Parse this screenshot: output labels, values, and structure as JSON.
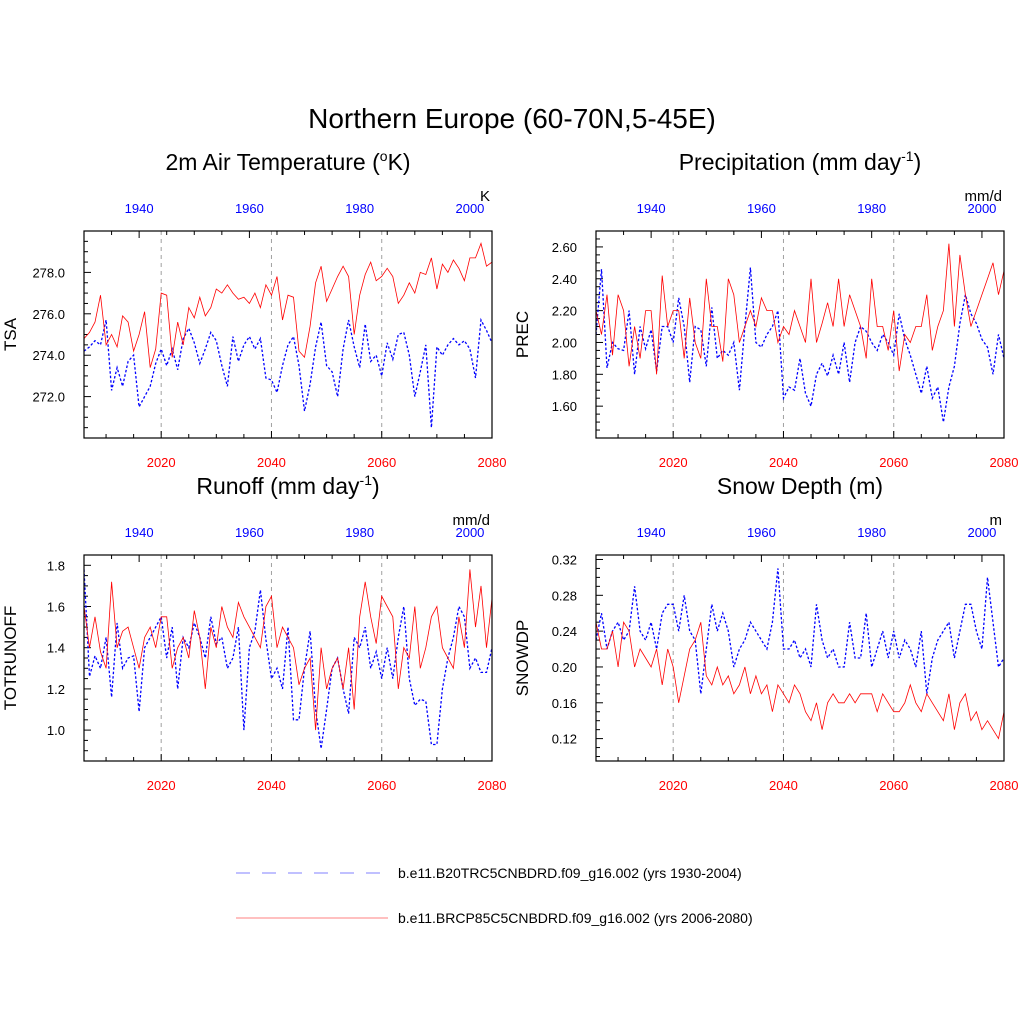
{
  "title": "Northern Europe (60-70N,5-45E)",
  "colors": {
    "historical": "#0000ff",
    "future": "#ff0000",
    "grid": "#a0a0a0",
    "axis": "#000000"
  },
  "legend": {
    "historical_label": "b.e11.B20TRC5CNBDRD.f09_g16.002 (yrs 1930-2004)",
    "future_label": "b.e11.BRCP85C5CNBDRD.f09_g16.002 (yrs 2006-2080)"
  },
  "chart_data": [
    {
      "type": "line",
      "title": "2m Air Temperature (°K)",
      "title_main": "2m Air Temperature (",
      "title_sup": "o",
      "title_end": "K)",
      "ylabel": "TSA",
      "units": "K",
      "ylim": [
        270.0,
        280.0
      ],
      "yticks": [
        272,
        274,
        276,
        278
      ],
      "ytick_labels": [
        "272.0",
        "274.0",
        "276.0",
        "278.0"
      ],
      "bottom_xlim": [
        2006,
        2080
      ],
      "bottom_xticks": [
        2020,
        2040,
        2060,
        2080
      ],
      "bottom_xtick_labels": [
        "2020",
        "2040",
        "2060",
        "2080"
      ],
      "top_xlim": [
        1930,
        2004
      ],
      "top_xticks": [
        1940,
        1960,
        1980,
        2000
      ],
      "top_xtick_labels": [
        "1940",
        "1960",
        "1980",
        "2000"
      ],
      "series": [
        {
          "name": "b.e11.B20TRC5CNBDRD.f09_g16.002 (yrs 1930-2004)",
          "style": "dashed",
          "axis": "top",
          "values": [
            274.2,
            274.4,
            274.7,
            274.5,
            275.7,
            272.3,
            273.4,
            272.5,
            273.7,
            274.0,
            271.5,
            272.0,
            272.5,
            273.6,
            274.3,
            273.5,
            274.3,
            273.3,
            274.8,
            275.3,
            274.6,
            273.6,
            274.3,
            275.1,
            274.7,
            273.5,
            272.5,
            274.9,
            273.7,
            274.5,
            274.9,
            274.3,
            274.8,
            272.9,
            272.8,
            272.2,
            273.5,
            274.5,
            274.9,
            273.5,
            271.3,
            272.6,
            274.4,
            275.6,
            273.5,
            273.2,
            272.0,
            274.3,
            275.7,
            274.4,
            273.4,
            275.5,
            273.7,
            274.0,
            273.0,
            274.6,
            273.8,
            275.0,
            275.1,
            274.0,
            272.0,
            273.2,
            274.5,
            270.5,
            274.4,
            274.0,
            274.5,
            274.8,
            274.5,
            274.7,
            274.3,
            272.9,
            275.7,
            275.2,
            274.6
          ]
        },
        {
          "name": "b.e11.BRCP85C5CNBDRD.f09_g16.002 (yrs 2006-2080)",
          "style": "solid",
          "axis": "bottom",
          "values": [
            274.8,
            275.1,
            275.6,
            276.9,
            274.5,
            275.0,
            274.4,
            275.9,
            275.6,
            274.2,
            275.0,
            276.1,
            273.4,
            274.3,
            277.0,
            276.9,
            273.9,
            275.6,
            274.5,
            276.3,
            275.8,
            276.8,
            275.9,
            276.3,
            277.2,
            277.0,
            277.4,
            277.0,
            276.7,
            276.8,
            276.5,
            277.0,
            276.3,
            277.4,
            276.9,
            277.8,
            275.7,
            276.9,
            276.8,
            274.2,
            273.9,
            275.4,
            277.5,
            278.3,
            276.6,
            277.2,
            277.8,
            278.3,
            277.8,
            275.0,
            276.9,
            277.9,
            278.5,
            277.6,
            277.8,
            278.2,
            277.8,
            276.5,
            276.9,
            277.5,
            277.0,
            278.0,
            277.9,
            278.7,
            277.2,
            278.4,
            278.0,
            278.6,
            278.2,
            277.6,
            278.7,
            278.7,
            279.4,
            278.3,
            278.5
          ]
        }
      ]
    },
    {
      "type": "line",
      "title": "Precipitation (mm day-1)",
      "title_main": "Precipitation (mm day",
      "title_sup": "-1",
      "title_end": ")",
      "ylabel": "PREC",
      "units": "mm/d",
      "ylim": [
        1.4,
        2.7
      ],
      "yticks": [
        1.6,
        1.8,
        2.0,
        2.2,
        2.4,
        2.6
      ],
      "ytick_labels": [
        "1.60",
        "1.80",
        "2.00",
        "2.20",
        "2.40",
        "2.60"
      ],
      "bottom_xlim": [
        2006,
        2080
      ],
      "bottom_xticks": [
        2020,
        2040,
        2060,
        2080
      ],
      "bottom_xtick_labels": [
        "2020",
        "2040",
        "2060",
        "2080"
      ],
      "top_xlim": [
        1930,
        2004
      ],
      "top_xticks": [
        1940,
        1960,
        1980,
        2000
      ],
      "top_xtick_labels": [
        "1940",
        "1960",
        "1980",
        "2000"
      ],
      "series": [
        {
          "name": "b.e11.B20TRC5CNBDRD.f09_g16.002 (yrs 1930-2004)",
          "style": "dashed",
          "axis": "top",
          "values": [
            2.05,
            2.46,
            1.84,
            2.0,
            1.96,
            1.95,
            2.2,
            1.8,
            2.1,
            1.96,
            2.08,
            1.82,
            2.1,
            2.1,
            2.0,
            2.28,
            2.1,
            1.75,
            2.1,
            2.08,
            1.85,
            2.22,
            1.9,
            1.95,
            1.92,
            2.0,
            1.7,
            2.1,
            2.47,
            2.0,
            1.97,
            2.05,
            2.1,
            2.2,
            1.65,
            1.72,
            1.7,
            1.9,
            1.68,
            1.6,
            1.8,
            1.87,
            1.79,
            1.92,
            1.8,
            2.0,
            1.75,
            2.0,
            2.1,
            2.07,
            2.0,
            1.95,
            2.05,
            2.0,
            1.92,
            2.18,
            2.02,
            1.92,
            1.8,
            1.68,
            1.85,
            1.65,
            1.72,
            1.5,
            1.72,
            1.85,
            2.12,
            2.3,
            2.18,
            2.12,
            2.02,
            1.97,
            1.8,
            2.05,
            1.9
          ]
        },
        {
          "name": "b.e11.BRCP85C5CNBDRD.f09_g16.002 (yrs 2006-2080)",
          "style": "solid",
          "axis": "bottom",
          "values": [
            2.2,
            2.05,
            2.3,
            1.92,
            2.3,
            2.2,
            1.85,
            2.1,
            1.9,
            2.2,
            2.2,
            1.8,
            2.42,
            2.1,
            2.2,
            2.2,
            1.9,
            2.28,
            2.0,
            1.9,
            2.4,
            2.1,
            2.1,
            1.88,
            2.4,
            2.3,
            2.0,
            2.1,
            2.2,
            2.1,
            2.28,
            2.2,
            2.2,
            2.0,
            2.1,
            2.05,
            2.2,
            2.1,
            2.0,
            2.4,
            2.0,
            2.12,
            2.25,
            2.1,
            2.4,
            2.1,
            2.3,
            2.2,
            2.1,
            1.9,
            2.4,
            2.1,
            2.1,
            1.95,
            2.2,
            1.82,
            2.05,
            2.0,
            2.1,
            2.1,
            2.3,
            1.95,
            2.1,
            2.2,
            2.62,
            2.1,
            2.55,
            2.3,
            2.1,
            2.2,
            2.3,
            2.4,
            2.5,
            2.3,
            2.45
          ]
        }
      ]
    },
    {
      "type": "line",
      "title": "Runoff (mm day-1)",
      "title_main": "Runoff (mm day",
      "title_sup": "-1",
      "title_end": ")",
      "ylabel": "TOTRUNOFF",
      "units": "mm/d",
      "ylim": [
        0.85,
        1.85
      ],
      "yticks": [
        1.0,
        1.2,
        1.4,
        1.6,
        1.8
      ],
      "ytick_labels": [
        "1.0",
        "1.2",
        "1.4",
        "1.6",
        "1.8"
      ],
      "bottom_xlim": [
        2006,
        2080
      ],
      "bottom_xticks": [
        2020,
        2040,
        2060,
        2080
      ],
      "bottom_xtick_labels": [
        "2020",
        "2040",
        "2060",
        "2080"
      ],
      "top_xlim": [
        1930,
        2004
      ],
      "top_xticks": [
        1940,
        1960,
        1980,
        2000
      ],
      "top_xtick_labels": [
        "1940",
        "1960",
        "1980",
        "2000"
      ],
      "series": [
        {
          "name": "b.e11.B20TRC5CNBDRD.f09_g16.002 (yrs 1930-2004)",
          "style": "dashed",
          "axis": "top",
          "values": [
            1.78,
            1.26,
            1.36,
            1.3,
            1.45,
            1.16,
            1.52,
            1.3,
            1.35,
            1.36,
            1.09,
            1.4,
            1.45,
            1.5,
            1.55,
            1.35,
            1.5,
            1.2,
            1.45,
            1.4,
            1.52,
            1.45,
            1.35,
            1.55,
            1.42,
            1.45,
            1.3,
            1.35,
            1.5,
            1.0,
            1.4,
            1.48,
            1.68,
            1.44,
            1.25,
            1.3,
            1.2,
            1.5,
            1.05,
            1.05,
            1.3,
            1.48,
            1.1,
            0.91,
            1.1,
            1.3,
            1.35,
            1.2,
            1.08,
            1.45,
            1.4,
            1.5,
            1.3,
            1.38,
            1.25,
            1.4,
            1.25,
            1.45,
            1.6,
            1.25,
            1.12,
            1.15,
            1.14,
            0.93,
            0.93,
            1.2,
            1.35,
            1.45,
            1.6,
            1.55,
            1.3,
            1.35,
            1.28,
            1.28,
            1.4
          ]
        },
        {
          "name": "b.e11.BRCP85C5CNBDRD.f09_g16.002 (yrs 2006-2080)",
          "style": "solid",
          "axis": "bottom",
          "values": [
            1.6,
            1.4,
            1.55,
            1.38,
            1.3,
            1.72,
            1.4,
            1.48,
            1.5,
            1.4,
            1.3,
            1.45,
            1.5,
            1.4,
            1.55,
            1.55,
            1.3,
            1.4,
            1.45,
            1.35,
            1.58,
            1.45,
            1.2,
            1.5,
            1.4,
            1.6,
            1.5,
            1.45,
            1.62,
            1.55,
            1.5,
            1.45,
            1.4,
            1.6,
            1.65,
            1.4,
            1.5,
            1.45,
            1.4,
            1.22,
            1.3,
            1.35,
            1.0,
            1.4,
            1.2,
            1.3,
            1.35,
            1.2,
            1.4,
            1.1,
            1.55,
            1.72,
            1.55,
            1.42,
            1.65,
            1.6,
            1.55,
            1.2,
            1.4,
            1.35,
            1.6,
            1.3,
            1.4,
            1.55,
            1.6,
            1.4,
            1.35,
            1.3,
            1.55,
            1.4,
            1.78,
            1.5,
            1.7,
            1.4,
            1.64
          ]
        }
      ]
    },
    {
      "type": "line",
      "title": "Snow Depth (m)",
      "title_main": "Snow Depth (m)",
      "title_sup": "",
      "title_end": "",
      "ylabel": "SNOWDP",
      "units": "m",
      "ylim": [
        0.095,
        0.325
      ],
      "yticks": [
        0.12,
        0.16,
        0.2,
        0.24,
        0.28,
        0.32
      ],
      "ytick_labels": [
        "0.12",
        "0.16",
        "0.20",
        "0.24",
        "0.28",
        "0.32"
      ],
      "bottom_xlim": [
        2006,
        2080
      ],
      "bottom_xticks": [
        2020,
        2040,
        2060,
        2080
      ],
      "bottom_xtick_labels": [
        "2020",
        "2040",
        "2060",
        "2080"
      ],
      "top_xlim": [
        1930,
        2004
      ],
      "top_xticks": [
        1940,
        1960,
        1980,
        2000
      ],
      "top_xtick_labels": [
        "1940",
        "1960",
        "1980",
        "2000"
      ],
      "series": [
        {
          "name": "b.e11.B20TRC5CNBDRD.f09_g16.002 (yrs 1930-2004)",
          "style": "dashed",
          "axis": "top",
          "values": [
            0.23,
            0.26,
            0.22,
            0.24,
            0.25,
            0.23,
            0.24,
            0.29,
            0.24,
            0.23,
            0.25,
            0.22,
            0.26,
            0.27,
            0.27,
            0.24,
            0.28,
            0.24,
            0.23,
            0.17,
            0.22,
            0.27,
            0.24,
            0.26,
            0.24,
            0.2,
            0.22,
            0.23,
            0.25,
            0.24,
            0.23,
            0.22,
            0.25,
            0.31,
            0.22,
            0.22,
            0.23,
            0.21,
            0.22,
            0.2,
            0.27,
            0.23,
            0.21,
            0.22,
            0.2,
            0.2,
            0.25,
            0.21,
            0.21,
            0.26,
            0.2,
            0.22,
            0.24,
            0.21,
            0.24,
            0.21,
            0.23,
            0.22,
            0.2,
            0.24,
            0.17,
            0.21,
            0.23,
            0.24,
            0.25,
            0.21,
            0.24,
            0.27,
            0.27,
            0.24,
            0.22,
            0.3,
            0.25,
            0.2,
            0.21
          ]
        },
        {
          "name": "b.e11.BRCP85C5CNBDRD.f09_g16.002 (yrs 2006-2080)",
          "style": "solid",
          "axis": "bottom",
          "values": [
            0.25,
            0.22,
            0.22,
            0.24,
            0.2,
            0.25,
            0.24,
            0.2,
            0.22,
            0.21,
            0.2,
            0.22,
            0.18,
            0.22,
            0.2,
            0.16,
            0.19,
            0.22,
            0.23,
            0.25,
            0.19,
            0.18,
            0.2,
            0.18,
            0.19,
            0.17,
            0.18,
            0.2,
            0.17,
            0.19,
            0.17,
            0.18,
            0.15,
            0.18,
            0.17,
            0.16,
            0.18,
            0.17,
            0.15,
            0.14,
            0.16,
            0.13,
            0.16,
            0.17,
            0.16,
            0.16,
            0.17,
            0.16,
            0.17,
            0.17,
            0.17,
            0.15,
            0.17,
            0.16,
            0.15,
            0.15,
            0.16,
            0.18,
            0.16,
            0.15,
            0.17,
            0.16,
            0.15,
            0.14,
            0.17,
            0.13,
            0.16,
            0.17,
            0.14,
            0.15,
            0.13,
            0.14,
            0.13,
            0.12,
            0.15
          ]
        }
      ]
    }
  ]
}
